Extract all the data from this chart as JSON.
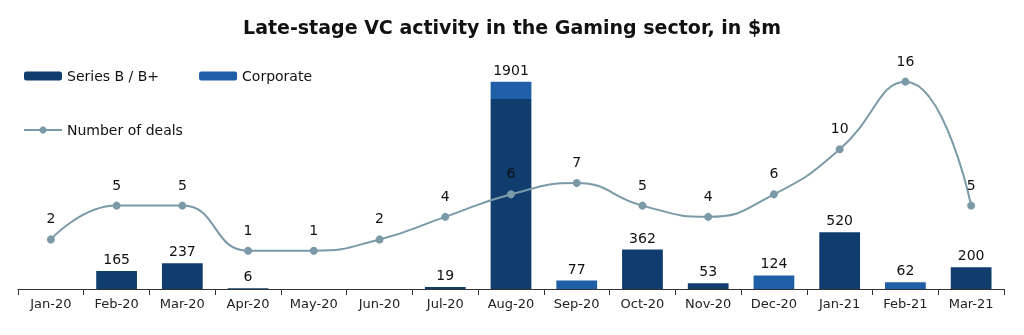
{
  "chart_data": {
    "type": "bar",
    "title": "Late-stage VC activity in the Gaming sector, in $m",
    "categories": [
      "Jan-20",
      "Feb-20",
      "Mar-20",
      "Apr-20",
      "May-20",
      "Jun-20",
      "Jul-20",
      "Aug-20",
      "Sep-20",
      "Oct-20",
      "Nov-20",
      "Dec-20",
      "Jan-21",
      "Feb-21",
      "Mar-21"
    ],
    "stacked": true,
    "series": [
      {
        "name": "Series B / B+",
        "color": "#103c6e",
        "values": [
          null,
          165,
          237,
          6,
          null,
          null,
          19,
          1743,
          null,
          362,
          53,
          null,
          520,
          null,
          200
        ],
        "value_labels": [
          null,
          "165",
          "237",
          "6",
          null,
          null,
          "19",
          null,
          null,
          "362",
          "53",
          null,
          "520",
          null,
          "200"
        ]
      },
      {
        "name": "Corporate",
        "color": "#1f5fa8",
        "values": [
          null,
          null,
          null,
          null,
          null,
          null,
          null,
          158,
          77,
          null,
          null,
          124,
          null,
          62,
          null
        ],
        "value_labels": [
          null,
          null,
          null,
          null,
          null,
          null,
          null,
          null,
          "77",
          null,
          null,
          "124",
          null,
          "62",
          null
        ]
      },
      {
        "name": "Number of deals",
        "type": "line",
        "axis": "y2",
        "color": "#7b9aa8",
        "marker": "circle",
        "values": [
          2,
          5,
          5,
          1,
          1,
          2,
          4,
          6,
          7,
          5,
          4,
          6,
          10,
          16,
          5
        ],
        "value_labels": [
          "2",
          "5",
          "5",
          "1",
          "1",
          "2",
          "4",
          "6",
          "7",
          "5",
          "4",
          "6",
          "10",
          "16",
          "5"
        ]
      }
    ],
    "totals": [
      null,
      null,
      null,
      null,
      null,
      null,
      null,
      "1901",
      null,
      null,
      null,
      null,
      null,
      null,
      null
    ],
    "tick_labels": "x",
    "grid": false,
    "legend": "top left"
  }
}
